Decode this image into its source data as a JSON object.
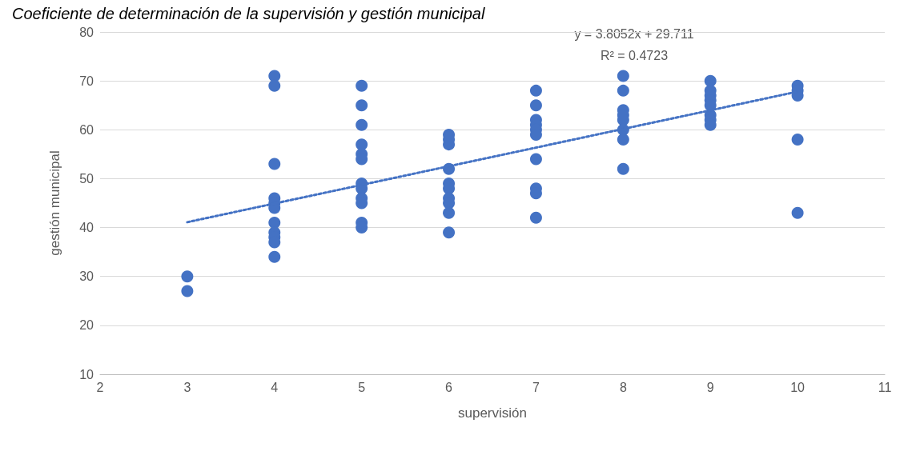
{
  "chart_data": {
    "type": "scatter",
    "title": "Coeficiente de determinación de la supervisión y gestión municipal",
    "xlabel": "supervisión",
    "ylabel": "gestión municipal",
    "series": [
      {
        "color": "#4472c4",
        "marker": "circle",
        "x": [
          3,
          3,
          4,
          4,
          4,
          4,
          4,
          4,
          4,
          4,
          4,
          4,
          4,
          5,
          5,
          5,
          5,
          5,
          5,
          5,
          5,
          5,
          5,
          5,
          5,
          6,
          6,
          6,
          6,
          6,
          6,
          6,
          6,
          6,
          6,
          7,
          7,
          7,
          7,
          7,
          7,
          7,
          7,
          7,
          7,
          8,
          8,
          8,
          8,
          8,
          8,
          8,
          8,
          9,
          9,
          9,
          9,
          9,
          9,
          9,
          9,
          10,
          10,
          10,
          10,
          10
        ],
        "values": [
          30,
          27,
          71,
          69,
          53,
          46,
          45,
          44,
          41,
          39,
          38,
          37,
          34,
          69,
          65,
          61,
          57,
          55,
          54,
          49,
          48,
          46,
          45,
          41,
          40,
          59,
          58,
          57,
          52,
          49,
          48,
          46,
          45,
          43,
          39,
          68,
          65,
          62,
          61,
          60,
          59,
          54,
          48,
          47,
          42,
          71,
          68,
          64,
          63,
          62,
          60,
          58,
          52,
          70,
          68,
          67,
          66,
          65,
          63,
          62,
          61,
          69,
          68,
          67,
          58,
          43
        ]
      },
      {
        "type": "line",
        "color": "#4472c4",
        "marker": "none",
        "line_style": "dotted",
        "x": [
          3,
          10
        ],
        "values": [
          41.1,
          67.8
        ]
      }
    ],
    "annotations": [
      "y = 3.8052x + 29.711",
      "R² = 0.4723"
    ],
    "xlim": [
      2,
      11
    ],
    "xticks": [
      2,
      3,
      4,
      5,
      6,
      7,
      8,
      9,
      10,
      11
    ],
    "ylim": [
      10,
      80
    ],
    "yticks": [
      10,
      20,
      30,
      40,
      50,
      60,
      70,
      80
    ],
    "grid": "y"
  }
}
